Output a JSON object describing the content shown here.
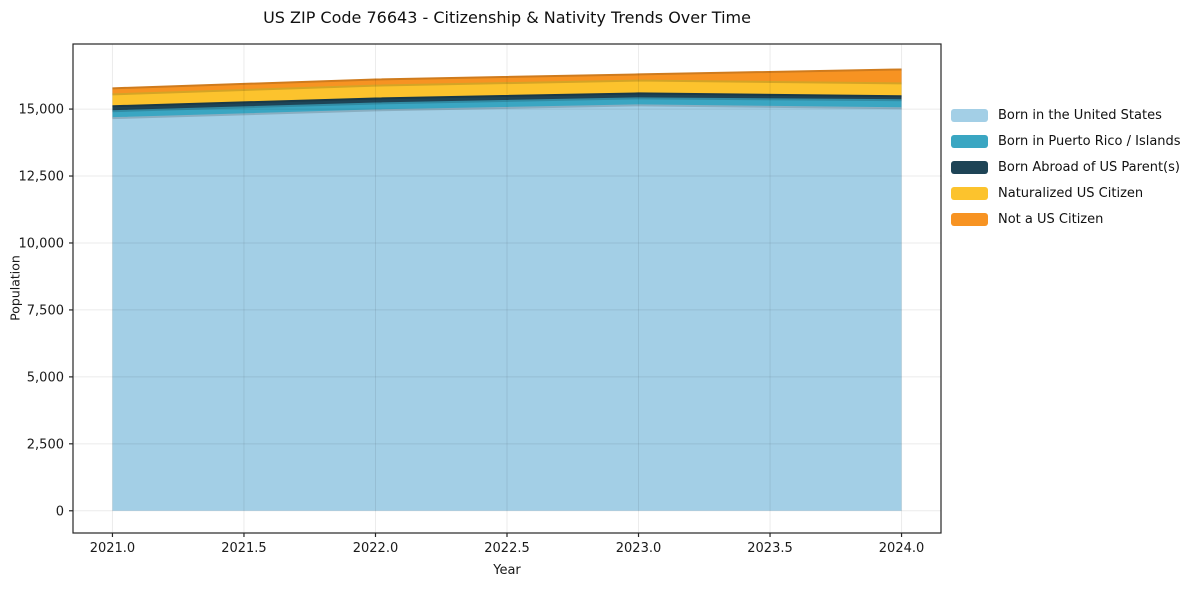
{
  "chart_data": {
    "type": "area",
    "stacked": true,
    "title": "US ZIP Code 76643 - Citizenship & Nativity Trends Over Time",
    "xlabel": "Year",
    "ylabel": "Population",
    "x": [
      2021,
      2022,
      2023,
      2024
    ],
    "series": [
      {
        "name": "Born in the United States",
        "color": "#a3cfe6",
        "values": [
          14660,
          14950,
          15140,
          15030
        ]
      },
      {
        "name": "Born in Puerto Rico / Islands",
        "color": "#3aa6c2",
        "values": [
          260,
          260,
          260,
          300
        ]
      },
      {
        "name": "Born Abroad of US Parent(s)",
        "color": "#1e4456",
        "values": [
          185,
          185,
          185,
          150
        ]
      },
      {
        "name": "Naturalized US Citizen",
        "color": "#fcc32d",
        "values": [
          445,
          480,
          480,
          480
        ]
      },
      {
        "name": "Not a US Citizen",
        "color": "#f79322",
        "values": [
          225,
          230,
          230,
          520
        ]
      }
    ],
    "xticks": [
      2021.0,
      2021.5,
      2022.0,
      2022.5,
      2023.0,
      2023.5,
      2024.0
    ],
    "xtick_labels": [
      "2021.0",
      "2021.5",
      "2022.0",
      "2022.5",
      "2023.0",
      "2023.5",
      "2024.0"
    ],
    "yticks": [
      0,
      2500,
      5000,
      7500,
      10000,
      12500,
      15000
    ],
    "ytick_labels": [
      "0",
      "2,500",
      "5,000",
      "7,500",
      "10,000",
      "12,500",
      "15,000"
    ],
    "xlim": [
      2020.85,
      2024.15
    ],
    "ylim": [
      -830,
      17430
    ],
    "grid": true,
    "legend_position": "right of plot, upper area, no frame"
  }
}
